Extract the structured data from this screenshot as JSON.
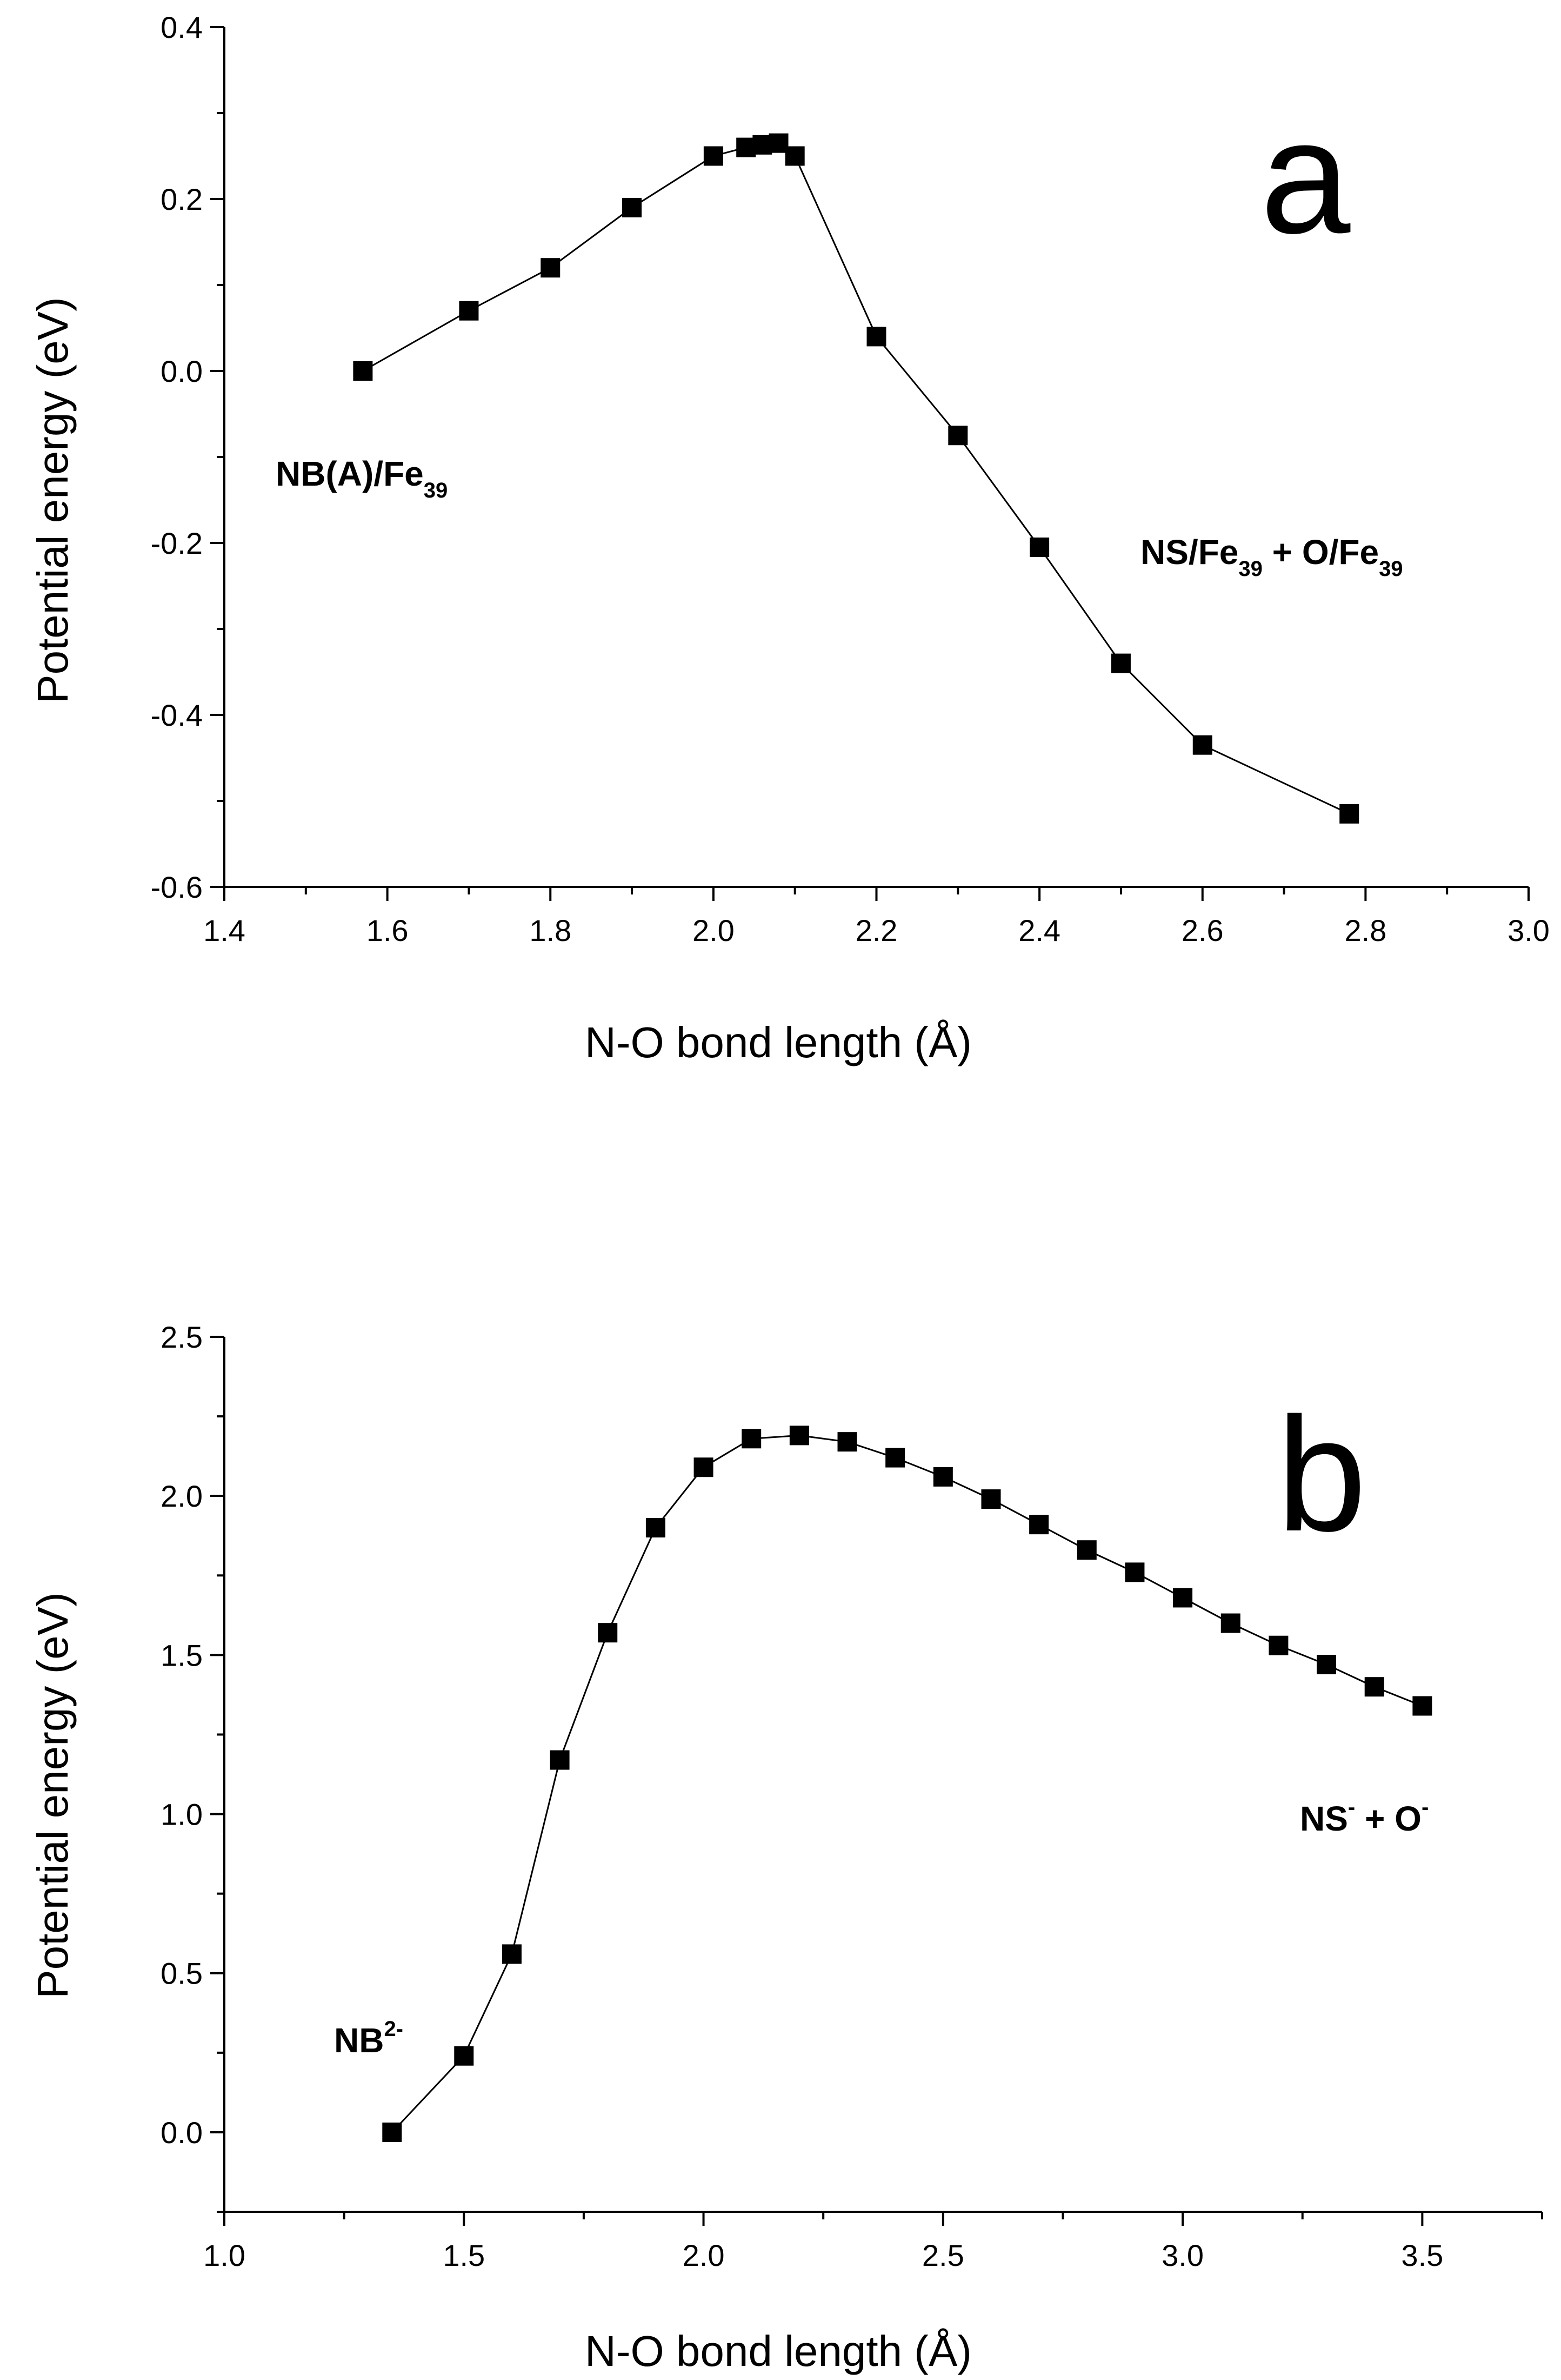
{
  "chart_data": [
    {
      "type": "line",
      "panel_label": "a",
      "xlabel": "N-O bond length (Å)",
      "ylabel": "Potential energy (eV)",
      "xlim": [
        1.4,
        3.0
      ],
      "ylim": [
        -0.6,
        0.4
      ],
      "x_ticks": [
        1.4,
        1.6,
        1.8,
        2.0,
        2.2,
        2.4,
        2.6,
        2.8,
        3.0
      ],
      "x_tick_labels": [
        "1.4",
        "1.6",
        "1.8",
        "2.0",
        "2.2",
        "2.4",
        "2.6",
        "2.8",
        "3.0"
      ],
      "y_ticks": [
        -0.6,
        -0.4,
        -0.2,
        0.0,
        0.2,
        0.4
      ],
      "y_tick_labels": [
        "-0.6",
        "-0.4",
        "-0.2",
        "0.0",
        "0.2",
        "0.4"
      ],
      "series": [
        {
          "name": "energy",
          "x": [
            1.57,
            1.7,
            1.8,
            1.9,
            2.0,
            2.04,
            2.06,
            2.08,
            2.1,
            2.2,
            2.3,
            2.4,
            2.5,
            2.6,
            2.78
          ],
          "y": [
            0.0,
            0.07,
            0.12,
            0.19,
            0.25,
            0.26,
            0.263,
            0.265,
            0.25,
            0.04,
            -0.075,
            -0.205,
            -0.34,
            -0.435,
            -0.515
          ]
        }
      ],
      "annotations": [
        {
          "id": "reactant",
          "main": "NB(A)/Fe",
          "sub": "39",
          "tail": ""
        },
        {
          "id": "product",
          "main": "NS/Fe",
          "sub": "39",
          "tail": " + O/Fe",
          "sub2": "39"
        }
      ]
    },
    {
      "type": "line",
      "panel_label": "b",
      "xlabel": "N-O bond length (Å)",
      "ylabel": "Potential energy (eV)",
      "xlim": [
        1.0,
        3.75
      ],
      "ylim": [
        -0.25,
        2.5
      ],
      "x_ticks": [
        1.0,
        1.5,
        2.0,
        2.5,
        3.0,
        3.5
      ],
      "x_tick_labels": [
        "1.0",
        "1.5",
        "2.0",
        "2.5",
        "3.0",
        "3.5"
      ],
      "y_ticks": [
        0.0,
        0.5,
        1.0,
        1.5,
        2.0,
        2.5
      ],
      "y_tick_labels": [
        "0.0",
        "0.5",
        "1.0",
        "1.5",
        "2.0",
        "2.5"
      ],
      "series": [
        {
          "name": "energy",
          "x": [
            1.35,
            1.5,
            1.6,
            1.7,
            1.8,
            1.9,
            2.0,
            2.1,
            2.2,
            2.3,
            2.4,
            2.5,
            2.6,
            2.7,
            2.8,
            2.9,
            3.0,
            3.1,
            3.2,
            3.3,
            3.4,
            3.5
          ],
          "y": [
            0.0,
            0.24,
            0.56,
            1.17,
            1.57,
            1.9,
            2.09,
            2.18,
            2.19,
            2.17,
            2.12,
            2.06,
            1.99,
            1.91,
            1.83,
            1.76,
            1.68,
            1.6,
            1.53,
            1.47,
            1.4,
            1.34
          ]
        }
      ],
      "annotations": [
        {
          "id": "reactant",
          "main": "NB",
          "sup": "2-"
        },
        {
          "id": "product",
          "main": "NS",
          "sup": "-",
          "tail": " + O",
          "sup2": "-"
        }
      ]
    }
  ]
}
